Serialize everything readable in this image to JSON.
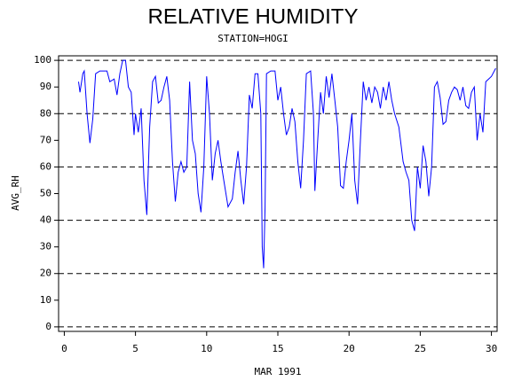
{
  "chart_data": {
    "type": "line",
    "title": "RELATIVE HUMIDITY",
    "subtitle": "STATION=HOGI",
    "y_label": "AVG_RH",
    "x_label": "MAR 1991",
    "color": "#0000ff",
    "xlim": [
      -0.4,
      30.4
    ],
    "ylim": [
      -1.7,
      101.7
    ],
    "xticks": [
      0,
      5,
      10,
      15,
      20,
      25,
      30
    ],
    "yticks": [
      0,
      10,
      20,
      30,
      40,
      50,
      60,
      70,
      80,
      90,
      100
    ],
    "grid_lines": [
      0,
      20,
      40,
      60,
      80,
      100
    ],
    "x": [
      1.0,
      1.1,
      1.3,
      1.4,
      1.6,
      1.8,
      2.0,
      2.2,
      2.5,
      3.0,
      3.2,
      3.5,
      3.7,
      3.9,
      4.1,
      4.3,
      4.5,
      4.7,
      4.9,
      5.0,
      5.2,
      5.4,
      5.6,
      5.8,
      6.0,
      6.2,
      6.4,
      6.6,
      6.8,
      7.0,
      7.2,
      7.4,
      7.6,
      7.8,
      8.0,
      8.2,
      8.4,
      8.6,
      8.8,
      9.0,
      9.2,
      9.4,
      9.6,
      9.8,
      10.0,
      10.2,
      10.4,
      10.6,
      10.8,
      11.0,
      11.2,
      11.5,
      11.8,
      12.0,
      12.2,
      12.4,
      12.6,
      12.8,
      13.0,
      13.2,
      13.4,
      13.6,
      13.8,
      13.9,
      14.0,
      14.1,
      14.2,
      14.5,
      14.8,
      15.0,
      15.2,
      15.4,
      15.6,
      15.8,
      16.0,
      16.2,
      16.4,
      16.6,
      16.8,
      17.0,
      17.3,
      17.5,
      17.6,
      17.8,
      18.0,
      18.2,
      18.4,
      18.6,
      18.8,
      19.0,
      19.2,
      19.4,
      19.6,
      19.8,
      20.0,
      20.2,
      20.4,
      20.6,
      20.8,
      21.0,
      21.2,
      21.4,
      21.6,
      21.8,
      22.0,
      22.2,
      22.4,
      22.6,
      22.8,
      23.0,
      23.2,
      23.5,
      23.8,
      24.0,
      24.2,
      24.4,
      24.6,
      24.8,
      25.0,
      25.2,
      25.4,
      25.6,
      25.8,
      26.0,
      26.2,
      26.4,
      26.6,
      26.8,
      27.0,
      27.2,
      27.4,
      27.6,
      27.8,
      28.0,
      28.2,
      28.4,
      28.6,
      28.8,
      29.0,
      29.2,
      29.4,
      29.6,
      29.8,
      30.0,
      30.3
    ],
    "values": [
      92,
      88,
      95,
      96,
      80,
      69,
      78,
      95,
      96,
      96,
      92,
      93,
      87,
      95,
      100,
      100,
      90,
      88,
      72,
      80,
      73,
      82,
      55,
      42,
      75,
      92,
      94,
      84,
      85,
      90,
      94,
      85,
      62,
      47,
      58,
      62,
      58,
      60,
      92,
      70,
      65,
      50,
      43,
      60,
      94,
      80,
      55,
      65,
      70,
      62,
      55,
      45,
      48,
      58,
      66,
      55,
      46,
      60,
      87,
      82,
      95,
      95,
      80,
      30,
      22,
      45,
      95,
      96,
      96,
      85,
      90,
      80,
      72,
      75,
      82,
      77,
      62,
      52,
      70,
      95,
      96,
      80,
      51,
      70,
      88,
      80,
      94,
      86,
      95,
      85,
      75,
      53,
      52,
      62,
      70,
      80,
      55,
      46,
      70,
      92,
      85,
      90,
      84,
      90,
      88,
      82,
      90,
      85,
      92,
      85,
      80,
      75,
      62,
      58,
      55,
      40,
      36,
      60,
      52,
      68,
      62,
      49,
      60,
      90,
      92,
      86,
      76,
      77,
      85,
      88,
      90,
      89,
      85,
      90,
      83,
      82,
      88,
      90,
      70,
      80,
      73,
      92,
      93,
      94,
      97
    ]
  }
}
